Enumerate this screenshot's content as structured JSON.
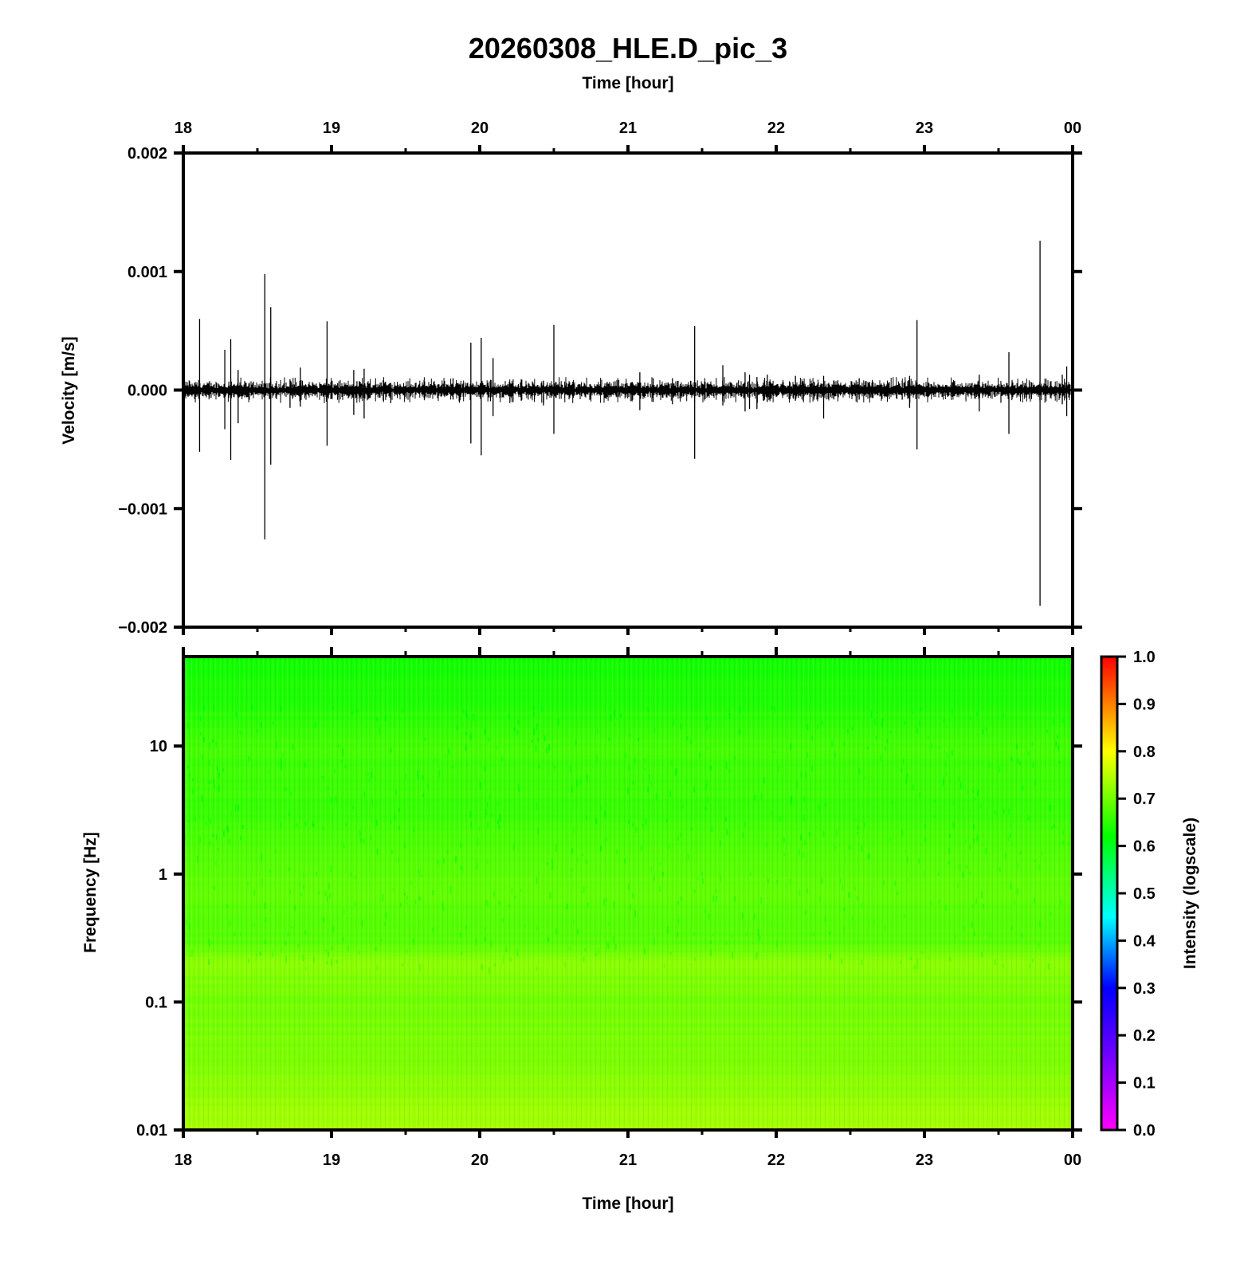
{
  "chart_data": [
    {
      "type": "line",
      "title": "20260308_HLE.D_pic_3",
      "top_axis_label": "Time [hour]",
      "ylabel": "Velocity [m/s]",
      "x_ticks": [
        "18",
        "19",
        "20",
        "21",
        "22",
        "23",
        "00"
      ],
      "xlim": [
        18,
        24
      ],
      "y_ticks": [
        "0.002",
        "0.001",
        "0.000",
        "−0.001",
        "−0.002"
      ],
      "y_tick_values": [
        0.002,
        0.001,
        0.0,
        -0.001,
        -0.002
      ],
      "ylim": [
        -0.002,
        0.002
      ],
      "noise_amplitude": 6e-05,
      "series": [
        {
          "color": "#000000",
          "spikes": [
            {
              "t": 18.11,
              "up": 0.0006,
              "down": -0.00052
            },
            {
              "t": 18.28,
              "up": 0.00034,
              "down": -0.00033
            },
            {
              "t": 18.32,
              "up": 0.00043,
              "down": -0.00059
            },
            {
              "t": 18.37,
              "up": 0.00017,
              "down": -0.00028
            },
            {
              "t": 18.55,
              "up": 0.00098,
              "down": -0.00126
            },
            {
              "t": 18.59,
              "up": 0.0007,
              "down": -0.00063
            },
            {
              "t": 18.72,
              "up": 9e-05,
              "down": -0.00015
            },
            {
              "t": 18.79,
              "up": 0.00019,
              "down": -0.00014
            },
            {
              "t": 18.97,
              "up": 0.00058,
              "down": -0.00047
            },
            {
              "t": 19.15,
              "up": 0.00017,
              "down": -0.00021
            },
            {
              "t": 19.22,
              "up": 0.00018,
              "down": -0.00024
            },
            {
              "t": 19.4,
              "up": 6e-05,
              "down": -0.00011
            },
            {
              "t": 19.82,
              "up": 0.0001,
              "down": -8e-05
            },
            {
              "t": 19.94,
              "up": 0.0004,
              "down": -0.00045
            },
            {
              "t": 20.01,
              "up": 0.00044,
              "down": -0.00055
            },
            {
              "t": 20.09,
              "up": 0.00027,
              "down": -0.00022
            },
            {
              "t": 20.28,
              "up": 9e-05,
              "down": -9e-05
            },
            {
              "t": 20.43,
              "up": 8e-05,
              "down": -0.00013
            },
            {
              "t": 20.5,
              "up": 0.00055,
              "down": -0.00037
            },
            {
              "t": 21.08,
              "up": 0.00015,
              "down": -0.00017
            },
            {
              "t": 21.17,
              "up": 0.0001,
              "down": -0.0001
            },
            {
              "t": 21.3,
              "up": 0.0001,
              "down": -0.00012
            },
            {
              "t": 21.45,
              "up": 0.00054,
              "down": -0.00058
            },
            {
              "t": 21.64,
              "up": 0.00021,
              "down": -0.00013
            },
            {
              "t": 21.79,
              "up": 0.00015,
              "down": -0.00018
            },
            {
              "t": 21.82,
              "up": 0.00013,
              "down": -0.00016
            },
            {
              "t": 21.87,
              "up": 0.00011,
              "down": -0.00016
            },
            {
              "t": 21.94,
              "up": 0.00013,
              "down": -0.0001
            },
            {
              "t": 22.13,
              "up": 0.00012,
              "down": -9e-05
            },
            {
              "t": 22.32,
              "up": 0.00012,
              "down": -0.00024
            },
            {
              "t": 22.56,
              "up": 0.0001,
              "down": -8e-05
            },
            {
              "t": 22.9,
              "up": 0.00012,
              "down": -0.00015
            },
            {
              "t": 22.95,
              "up": 0.00059,
              "down": -0.0005
            },
            {
              "t": 23.37,
              "up": 0.00013,
              "down": -0.00018
            },
            {
              "t": 23.57,
              "up": 0.00032,
              "down": -0.00037
            },
            {
              "t": 23.78,
              "up": 0.00126,
              "down": -0.00182
            },
            {
              "t": 23.93,
              "up": 0.00013,
              "down": -0.00012
            },
            {
              "t": 23.96,
              "up": 0.0002,
              "down": -0.00022
            }
          ]
        }
      ]
    },
    {
      "type": "heatmap",
      "xlabel": "Time [hour]",
      "ylabel": "Frequency [Hz]",
      "x_ticks": [
        "18",
        "19",
        "20",
        "21",
        "22",
        "23",
        "00"
      ],
      "xlim": [
        18,
        24
      ],
      "y_scale": "log",
      "y_ticks": [
        "10",
        "1",
        "0.1",
        "0.01"
      ],
      "y_tick_values": [
        10,
        1,
        0.1,
        0.01
      ],
      "ylim": [
        0.01,
        50
      ],
      "intensity_profile": [
        {
          "freq": 50,
          "intensity": 0.63
        },
        {
          "freq": 20,
          "intensity": 0.645
        },
        {
          "freq": 10,
          "intensity": 0.665
        },
        {
          "freq": 3,
          "intensity": 0.66
        },
        {
          "freq": 1,
          "intensity": 0.685
        },
        {
          "freq": 0.3,
          "intensity": 0.68
        },
        {
          "freq": 0.2,
          "intensity": 0.715
        },
        {
          "freq": 0.1,
          "intensity": 0.7
        },
        {
          "freq": 0.03,
          "intensity": 0.71
        },
        {
          "freq": 0.01,
          "intensity": 0.74
        }
      ],
      "colorbar": {
        "label": "Intensity (logscale)",
        "ticks": [
          "0.0",
          "0.1",
          "0.2",
          "0.3",
          "0.4",
          "0.5",
          "0.6",
          "0.7",
          "0.8",
          "0.9",
          "1.0"
        ],
        "tick_values": [
          0,
          0.1,
          0.2,
          0.3,
          0.4,
          0.5,
          0.6,
          0.7,
          0.8,
          0.9,
          1.0
        ],
        "colors": [
          "#ff00ff",
          "#6600ff",
          "#0000ff",
          "#00ffff",
          "#00ff00",
          "#ffff00",
          "#ff0000"
        ]
      }
    }
  ]
}
